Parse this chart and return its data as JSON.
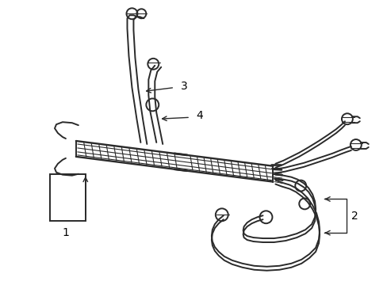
{
  "bg_color": "#ffffff",
  "line_color": "#2a2a2a",
  "label_color": "#000000",
  "lw": 1.4,
  "figsize": [
    4.89,
    3.6
  ],
  "dpi": 100
}
